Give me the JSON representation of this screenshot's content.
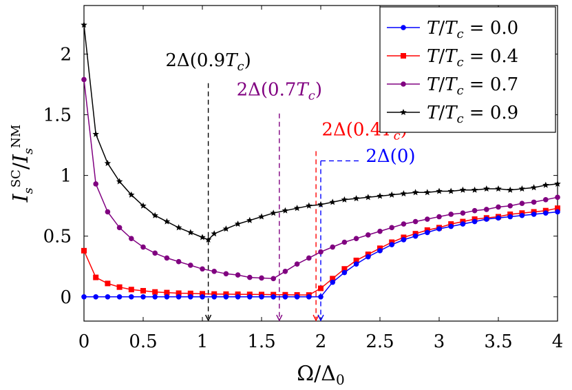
{
  "chart_data": {
    "type": "line",
    "xlabel": "Ω/Δ₀",
    "ylabel": "I_s^SC / I_s^NM",
    "xlim": [
      0,
      4
    ],
    "ylim": [
      -0.2,
      2.4
    ],
    "x_ticks": [
      "0",
      "0.5",
      "1",
      "1.5",
      "2",
      "2.5",
      "3",
      "3.5",
      "4"
    ],
    "y_ticks": [
      "0",
      "0.5",
      "1",
      "1.5",
      "2"
    ],
    "grid": false,
    "legend_position": "top-right",
    "series": [
      {
        "name": "T/Tc = 0.0",
        "color": "#0000ff",
        "marker": "circle",
        "points": [
          [
            0,
            0
          ],
          [
            0.1,
            0
          ],
          [
            0.2,
            0
          ],
          [
            0.3,
            0
          ],
          [
            0.4,
            0
          ],
          [
            0.5,
            0
          ],
          [
            0.6,
            0
          ],
          [
            0.7,
            0
          ],
          [
            0.8,
            0
          ],
          [
            0.9,
            0
          ],
          [
            1.0,
            0
          ],
          [
            1.1,
            0
          ],
          [
            1.2,
            0
          ],
          [
            1.3,
            0
          ],
          [
            1.4,
            0
          ],
          [
            1.5,
            0
          ],
          [
            1.6,
            0
          ],
          [
            1.7,
            0
          ],
          [
            1.8,
            0
          ],
          [
            1.9,
            0
          ],
          [
            2.0,
            0.0
          ],
          [
            2.1,
            0.12
          ],
          [
            2.2,
            0.2
          ],
          [
            2.3,
            0.27
          ],
          [
            2.4,
            0.33
          ],
          [
            2.5,
            0.38
          ],
          [
            2.6,
            0.43
          ],
          [
            2.7,
            0.47
          ],
          [
            2.8,
            0.5
          ],
          [
            2.9,
            0.53
          ],
          [
            3.0,
            0.56
          ],
          [
            3.1,
            0.58
          ],
          [
            3.2,
            0.6
          ],
          [
            3.3,
            0.62
          ],
          [
            3.4,
            0.64
          ],
          [
            3.5,
            0.65
          ],
          [
            3.6,
            0.66
          ],
          [
            3.7,
            0.67
          ],
          [
            3.8,
            0.68
          ],
          [
            3.9,
            0.69
          ],
          [
            4.0,
            0.7
          ]
        ]
      },
      {
        "name": "T/Tc = 0.4",
        "color": "#ff0000",
        "marker": "square",
        "points": [
          [
            0,
            0.38
          ],
          [
            0.1,
            0.16
          ],
          [
            0.2,
            0.11
          ],
          [
            0.3,
            0.08
          ],
          [
            0.4,
            0.06
          ],
          [
            0.5,
            0.05
          ],
          [
            0.6,
            0.04
          ],
          [
            0.7,
            0.035
          ],
          [
            0.8,
            0.03
          ],
          [
            0.9,
            0.028
          ],
          [
            1.0,
            0.025
          ],
          [
            1.1,
            0.023
          ],
          [
            1.2,
            0.022
          ],
          [
            1.3,
            0.021
          ],
          [
            1.4,
            0.02
          ],
          [
            1.5,
            0.019
          ],
          [
            1.6,
            0.018
          ],
          [
            1.7,
            0.017
          ],
          [
            1.8,
            0.016
          ],
          [
            1.9,
            0.015
          ],
          [
            2.0,
            0.07
          ],
          [
            2.1,
            0.15
          ],
          [
            2.2,
            0.23
          ],
          [
            2.3,
            0.3
          ],
          [
            2.4,
            0.35
          ],
          [
            2.5,
            0.4
          ],
          [
            2.6,
            0.45
          ],
          [
            2.7,
            0.49
          ],
          [
            2.8,
            0.52
          ],
          [
            2.9,
            0.55
          ],
          [
            3.0,
            0.57
          ],
          [
            3.1,
            0.6
          ],
          [
            3.2,
            0.62
          ],
          [
            3.3,
            0.64
          ],
          [
            3.4,
            0.65
          ],
          [
            3.5,
            0.66
          ],
          [
            3.6,
            0.68
          ],
          [
            3.7,
            0.69
          ],
          [
            3.8,
            0.7
          ],
          [
            3.9,
            0.71
          ],
          [
            4.0,
            0.73
          ]
        ]
      },
      {
        "name": "T/Tc = 0.7",
        "color": "#800080",
        "marker": "circle",
        "points": [
          [
            0,
            1.79
          ],
          [
            0.1,
            0.93
          ],
          [
            0.2,
            0.7
          ],
          [
            0.3,
            0.57
          ],
          [
            0.4,
            0.48
          ],
          [
            0.5,
            0.41
          ],
          [
            0.6,
            0.36
          ],
          [
            0.7,
            0.32
          ],
          [
            0.8,
            0.29
          ],
          [
            0.9,
            0.26
          ],
          [
            1.0,
            0.23
          ],
          [
            1.1,
            0.21
          ],
          [
            1.2,
            0.19
          ],
          [
            1.3,
            0.18
          ],
          [
            1.4,
            0.16
          ],
          [
            1.5,
            0.155
          ],
          [
            1.6,
            0.15
          ],
          [
            1.7,
            0.21
          ],
          [
            1.8,
            0.27
          ],
          [
            1.9,
            0.32
          ],
          [
            2.0,
            0.37
          ],
          [
            2.1,
            0.41
          ],
          [
            2.2,
            0.45
          ],
          [
            2.3,
            0.48
          ],
          [
            2.4,
            0.51
          ],
          [
            2.5,
            0.54
          ],
          [
            2.6,
            0.57
          ],
          [
            2.7,
            0.6
          ],
          [
            2.8,
            0.62
          ],
          [
            2.9,
            0.64
          ],
          [
            3.0,
            0.66
          ],
          [
            3.1,
            0.68
          ],
          [
            3.2,
            0.69
          ],
          [
            3.3,
            0.71
          ],
          [
            3.4,
            0.72
          ],
          [
            3.5,
            0.74
          ],
          [
            3.6,
            0.75
          ],
          [
            3.7,
            0.77
          ],
          [
            3.8,
            0.78
          ],
          [
            3.9,
            0.8
          ],
          [
            4.0,
            0.82
          ]
        ]
      },
      {
        "name": "T/Tc = 0.9",
        "color": "#000000",
        "marker": "star",
        "points": [
          [
            0,
            2.24
          ],
          [
            0.1,
            1.34
          ],
          [
            0.2,
            1.1
          ],
          [
            0.3,
            0.95
          ],
          [
            0.4,
            0.84
          ],
          [
            0.5,
            0.75
          ],
          [
            0.6,
            0.67
          ],
          [
            0.7,
            0.62
          ],
          [
            0.8,
            0.57
          ],
          [
            0.9,
            0.53
          ],
          [
            1.0,
            0.49
          ],
          [
            1.05,
            0.47
          ],
          [
            1.1,
            0.52
          ],
          [
            1.2,
            0.56
          ],
          [
            1.3,
            0.6
          ],
          [
            1.4,
            0.63
          ],
          [
            1.5,
            0.66
          ],
          [
            1.6,
            0.69
          ],
          [
            1.7,
            0.71
          ],
          [
            1.8,
            0.73
          ],
          [
            1.9,
            0.75
          ],
          [
            2.0,
            0.76
          ],
          [
            2.1,
            0.78
          ],
          [
            2.2,
            0.8
          ],
          [
            2.3,
            0.81
          ],
          [
            2.4,
            0.82
          ],
          [
            2.5,
            0.83
          ],
          [
            2.6,
            0.84
          ],
          [
            2.7,
            0.85
          ],
          [
            2.8,
            0.86
          ],
          [
            2.9,
            0.86
          ],
          [
            3.0,
            0.87
          ],
          [
            3.1,
            0.87
          ],
          [
            3.2,
            0.88
          ],
          [
            3.3,
            0.88
          ],
          [
            3.4,
            0.89
          ],
          [
            3.5,
            0.89
          ],
          [
            3.6,
            0.88
          ],
          [
            3.7,
            0.89
          ],
          [
            3.8,
            0.9
          ],
          [
            3.9,
            0.92
          ],
          [
            4.0,
            0.93
          ]
        ]
      }
    ],
    "annotations": [
      {
        "label": "2Δ(0.9T_c)",
        "color": "#000000",
        "x": 1.05,
        "y_top": 1.76,
        "label_x": 1.05,
        "label_y": 1.9,
        "anchor": "middle",
        "stub": false
      },
      {
        "label": "2Δ(0.7T_c)",
        "color": "#800080",
        "x": 1.65,
        "y_top": 1.51,
        "label_x": 1.65,
        "label_y": 1.66,
        "anchor": "middle",
        "stub": false
      },
      {
        "label": "2Δ(0.4T_c)",
        "color": "#ff0000",
        "x": 1.96,
        "y_top": 1.2,
        "label_x": 2.37,
        "label_y": 1.33,
        "anchor": "middle",
        "stub": false
      },
      {
        "label": "2Δ(0)",
        "color": "#0000ff",
        "x": 2.0,
        "y_top": 1.12,
        "label_x": 2.38,
        "label_y": 1.11,
        "anchor": "start",
        "stub": true
      }
    ]
  }
}
